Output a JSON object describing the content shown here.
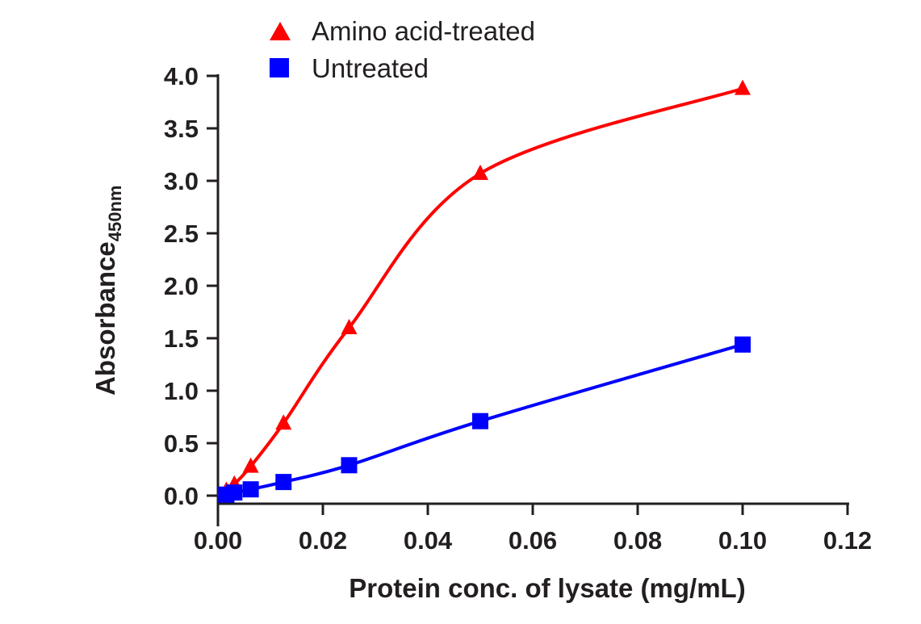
{
  "chart_data": {
    "type": "line",
    "title": "",
    "xlabel": "Protein conc. of lysate (mg/mL)",
    "ylabel": "Absorbance",
    "ylabel_subscript": "450nm",
    "xlim": [
      0,
      0.12
    ],
    "ylim": [
      0,
      4.0
    ],
    "xticks": [
      "0.00",
      "0.02",
      "0.04",
      "0.06",
      "0.08",
      "0.10",
      "0.12"
    ],
    "yticks": [
      "0.0",
      "0.5",
      "1.0",
      "1.5",
      "2.0",
      "2.5",
      "3.0",
      "3.5",
      "4.0"
    ],
    "grid": false,
    "legend_position": "top-left",
    "series": [
      {
        "name": "Amino acid-treated",
        "marker": "triangle",
        "color": "#ff0000",
        "x": [
          0.0016,
          0.003125,
          0.00625,
          0.0125,
          0.025,
          0.05,
          0.1
        ],
        "y": [
          0.05,
          0.11,
          0.28,
          0.69,
          1.6,
          3.07,
          3.88
        ]
      },
      {
        "name": "Untreated",
        "marker": "square",
        "color": "#0000ff",
        "x": [
          0.0016,
          0.003125,
          0.00625,
          0.0125,
          0.025,
          0.05,
          0.1
        ],
        "y": [
          0.01,
          0.03,
          0.06,
          0.13,
          0.29,
          0.71,
          1.44
        ]
      }
    ]
  }
}
